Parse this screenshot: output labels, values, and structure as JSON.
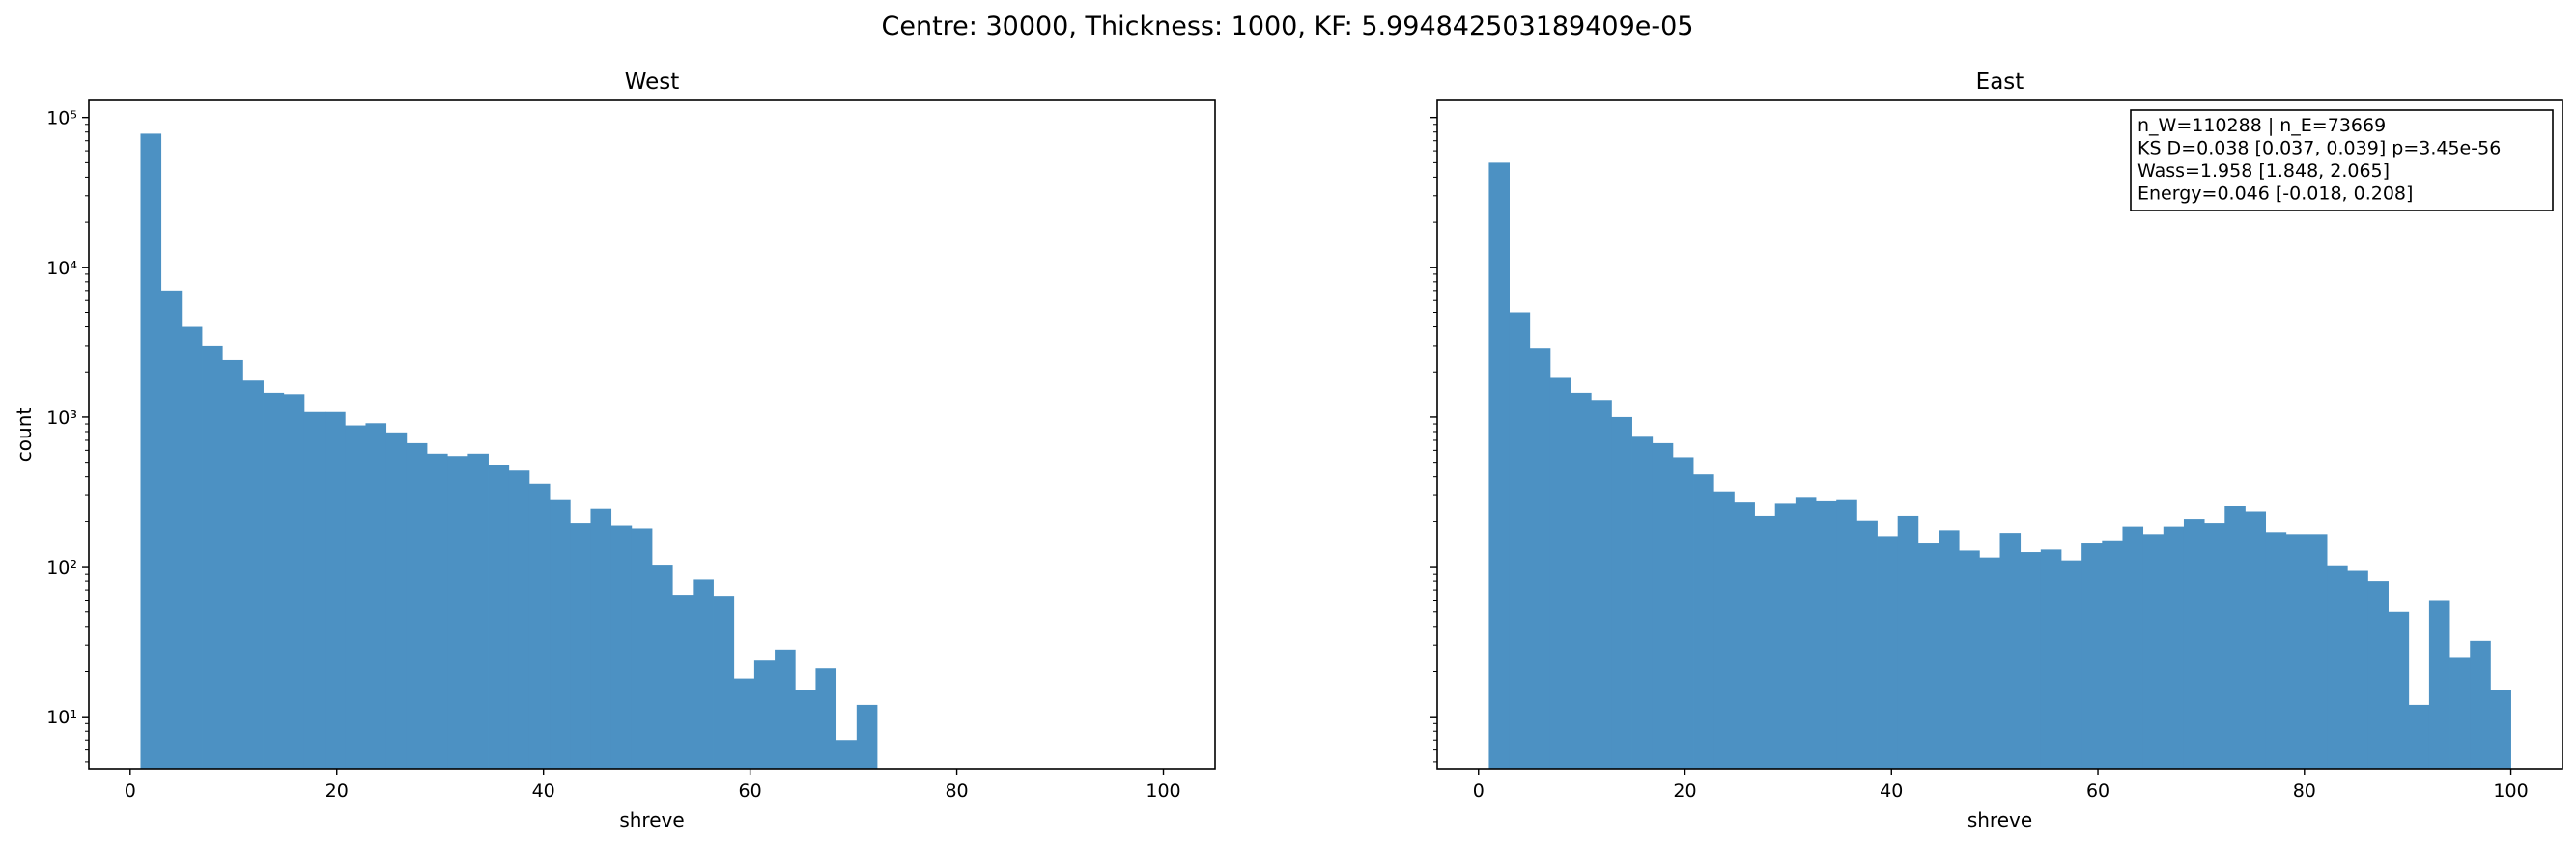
{
  "chart_data": {
    "suptitle": "Centre: 30000, Thickness: 1000, KF: 5.994842503189409e-05",
    "panels": [
      {
        "type": "bar",
        "title": "West",
        "xlabel": "shreve",
        "ylabel": "count",
        "xlim": [
          -4,
          105
        ],
        "ylim": [
          4.5,
          130000
        ],
        "yscale": "log",
        "xticks": [
          0,
          20,
          40,
          60,
          80,
          100
        ],
        "xtick_labels": [
          "0",
          "20",
          "40",
          "60",
          "80",
          "100"
        ],
        "yticks": [
          10,
          100,
          1000,
          10000,
          100000
        ],
        "ytick_labels": [
          "10¹",
          "10²",
          "10³",
          "10⁴",
          "10⁵"
        ],
        "bin_edges_start": 1,
        "bin_width": 1.98,
        "counts": [
          78000,
          7000,
          4000,
          3000,
          2400,
          1750,
          1450,
          1420,
          1080,
          1080,
          880,
          910,
          790,
          670,
          570,
          550,
          570,
          480,
          440,
          360,
          280,
          195,
          245,
          188,
          180,
          103,
          65,
          82,
          64,
          18,
          24,
          28,
          15,
          21,
          7,
          12
        ]
      },
      {
        "type": "bar",
        "title": "East",
        "xlabel": "shreve",
        "ylabel": "",
        "xlim": [
          -4,
          105
        ],
        "ylim": [
          4.5,
          130000
        ],
        "yscale": "log",
        "xticks": [
          0,
          20,
          40,
          60,
          80,
          100
        ],
        "xtick_labels": [
          "0",
          "20",
          "40",
          "60",
          "80",
          "100"
        ],
        "yticks": [
          10,
          100,
          1000,
          10000,
          100000
        ],
        "ytick_labels": [],
        "bin_edges_start": 1,
        "bin_width": 1.98,
        "counts": [
          50000,
          5000,
          2900,
          1850,
          1450,
          1300,
          1000,
          750,
          670,
          540,
          415,
          320,
          270,
          220,
          265,
          290,
          275,
          280,
          205,
          160,
          220,
          145,
          175,
          128,
          115,
          168,
          125,
          130,
          110,
          145,
          150,
          185,
          165,
          185,
          210,
          195,
          255,
          235,
          170,
          165,
          165,
          102,
          95,
          80,
          50,
          12,
          60,
          25,
          32,
          15
        ]
      }
    ],
    "annotation": {
      "lines": [
        "n_W=110288 | n_E=73669",
        "KS D=0.038 [0.037, 0.039]  p=3.45e-56",
        "Wass=1.958 [1.848, 2.065]",
        "Energy=0.046 [-0.018, 0.208]"
      ],
      "location": "top-right of East panel"
    }
  }
}
